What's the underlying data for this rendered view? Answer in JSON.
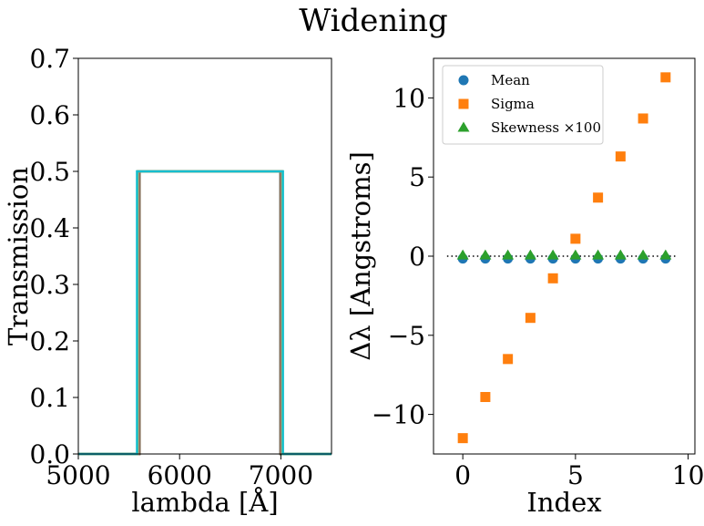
{
  "figure": {
    "title": "Widening"
  },
  "chart_data": [
    {
      "type": "line",
      "xlabel": "lambda [Å]",
      "ylabel": "Transmission",
      "xlim": [
        5000,
        7500
      ],
      "ylim": [
        0,
        0.7
      ],
      "xticks": [
        5000,
        6000,
        7000
      ],
      "yticks": [
        0.0,
        0.1,
        0.2,
        0.3,
        0.4,
        0.5,
        0.6,
        0.7
      ],
      "grid": false,
      "top_hat": {
        "amplitude": 0.5,
        "center": 6300
      },
      "series": [
        {
          "width": 1390,
          "color": "#1f77b4"
        },
        {
          "width": 1395,
          "color": "#ff7f0e"
        },
        {
          "width": 1400,
          "color": "#2ca02c"
        },
        {
          "width": 1405,
          "color": "#d62728"
        },
        {
          "width": 1410,
          "color": "#9467bd"
        },
        {
          "width": 1415,
          "color": "#8c564b"
        },
        {
          "width": 1420,
          "color": "#e377c2"
        },
        {
          "width": 1425,
          "color": "#7f7f7f"
        },
        {
          "width": 1430,
          "color": "#bcbd22"
        },
        {
          "width": 1440,
          "color": "#17becf"
        }
      ]
    },
    {
      "type": "scatter",
      "xlabel": "Index",
      "ylabel": "Δλ [Angstroms]",
      "xlim": [
        -1.3,
        10.3
      ],
      "ylim": [
        -12.5,
        12.5
      ],
      "xticks": [
        0,
        5,
        10
      ],
      "yticks": [
        -10,
        -5,
        0,
        5,
        10
      ],
      "grid": false,
      "legend": "top-left",
      "reference_line": {
        "y": 0,
        "style": "dotted",
        "color": "#000000"
      },
      "series": [
        {
          "name": "Mean",
          "marker": "circle",
          "color": "#1f77b4",
          "x": [
            0,
            1,
            2,
            3,
            4,
            5,
            6,
            7,
            8,
            9
          ],
          "y": [
            -0.15,
            -0.15,
            -0.15,
            -0.15,
            -0.15,
            -0.15,
            -0.15,
            -0.15,
            -0.15,
            -0.15
          ]
        },
        {
          "name": "Sigma",
          "marker": "square",
          "color": "#ff7f0e",
          "x": [
            0,
            1,
            2,
            3,
            4,
            5,
            6,
            7,
            8,
            9
          ],
          "y": [
            -11.5,
            -8.9,
            -6.5,
            -3.9,
            -1.4,
            1.1,
            3.7,
            6.3,
            8.7,
            11.3
          ]
        },
        {
          "name": "Skewness ×100",
          "marker": "triangle",
          "color": "#2ca02c",
          "x": [
            0,
            1,
            2,
            3,
            4,
            5,
            6,
            7,
            8,
            9
          ],
          "y": [
            0.05,
            0.05,
            0.05,
            0.05,
            0.05,
            0.05,
            0.05,
            0.05,
            0.05,
            0.05
          ]
        }
      ]
    }
  ]
}
